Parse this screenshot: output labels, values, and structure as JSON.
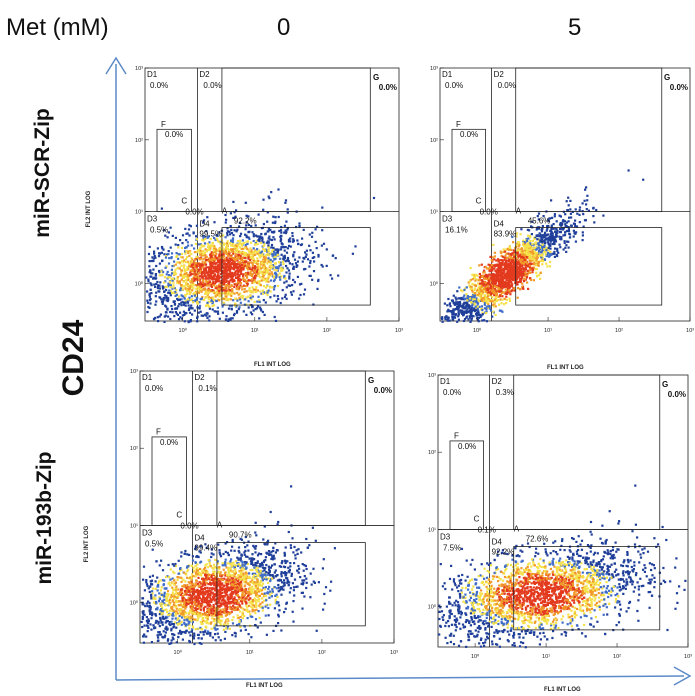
{
  "header": {
    "label": "Met (mM)",
    "conditions": [
      "0",
      "5"
    ]
  },
  "row_labels": [
    "miR-SCR-Zip",
    "miR-193b-Zip"
  ],
  "y_marker": "CD24",
  "axis_titles": {
    "x": "FL1 INT LOG",
    "y": "FL2 INT LOG"
  },
  "colors": {
    "arrow": "#5b8ac8",
    "dot_low": "#1f3f9a",
    "dot_mid": "#f5e14a",
    "dot_high": "#e33a1e",
    "gate": "#222222"
  },
  "chart_data": [
    {
      "type": "scatter",
      "row": "miR-SCR-Zip",
      "met_mM": "0",
      "x_ticks": [
        "10⁰",
        "10¹",
        "10²",
        "10³"
      ],
      "y_ticks": [
        "10⁰",
        "10¹",
        "10²",
        "10³"
      ],
      "xlim": [
        0.3,
        1000
      ],
      "ylim": [
        0.3,
        1000
      ],
      "log_scale": true,
      "gates": {
        "D1": "0.0%",
        "D2": "0.0%",
        "D3": "0.5%",
        "D4": "99.5%",
        "G": "0.0%",
        "F": "0.0%",
        "C": "0.0%",
        "A": "92.2%"
      },
      "population": {
        "center": [
          3.5,
          1.5
        ],
        "spread": [
          0.55,
          0.32
        ],
        "rho": 0.35,
        "count": 2400
      }
    },
    {
      "type": "scatter",
      "row": "miR-SCR-Zip",
      "met_mM": "5",
      "x_ticks": [
        "10⁰",
        "10¹",
        "10²",
        "10³"
      ],
      "y_ticks": [
        "10⁰",
        "10¹",
        "10²",
        "10³"
      ],
      "xlim": [
        0.3,
        1000
      ],
      "ylim": [
        0.3,
        1000
      ],
      "log_scale": true,
      "gates": {
        "D1": "0.0%",
        "D2": "0.0%",
        "D3": "16.1%",
        "D4": "83.9%",
        "G": "0.0%",
        "F": "0.0%",
        "C": "0.0%",
        "A": "45.6%"
      },
      "population": {
        "center": [
          2.5,
          1.4
        ],
        "spread": [
          0.45,
          0.38
        ],
        "rho": 0.9,
        "count": 2000
      }
    },
    {
      "type": "scatter",
      "row": "miR-193b-Zip",
      "met_mM": "0",
      "x_ticks": [
        "10⁰",
        "10¹",
        "10²",
        "10³"
      ],
      "y_ticks": [
        "10⁰",
        "10¹",
        "10²",
        "10³"
      ],
      "xlim": [
        0.3,
        1000
      ],
      "ylim": [
        0.3,
        1000
      ],
      "log_scale": true,
      "gates": {
        "D1": "0.0%",
        "D2": "0.1%",
        "D3": "0.5%",
        "D4": "99.4%",
        "G": "0.0%",
        "F": "0.0%",
        "C": "0.0%",
        "A": "90.7%"
      },
      "population": {
        "center": [
          3.2,
          1.3
        ],
        "spread": [
          0.55,
          0.3
        ],
        "rho": 0.45,
        "count": 2400
      }
    },
    {
      "type": "scatter",
      "row": "miR-193b-Zip",
      "met_mM": "5",
      "x_ticks": [
        "10⁰",
        "10¹",
        "10²",
        "10³"
      ],
      "y_ticks": [
        "10⁰",
        "10¹",
        "10²",
        "10³"
      ],
      "xlim": [
        0.3,
        1000
      ],
      "ylim": [
        0.3,
        1000
      ],
      "log_scale": true,
      "gates": {
        "D1": "0.0%",
        "D2": "0.3%",
        "D3": "7.5%",
        "D4": "92.2%",
        "G": "0.0%",
        "F": "0.0%",
        "C": "0.1%",
        "A": "72.6%"
      },
      "population": {
        "center": [
          8,
          1.5
        ],
        "spread": [
          0.7,
          0.3
        ],
        "rho": 0.45,
        "count": 2400
      }
    }
  ]
}
